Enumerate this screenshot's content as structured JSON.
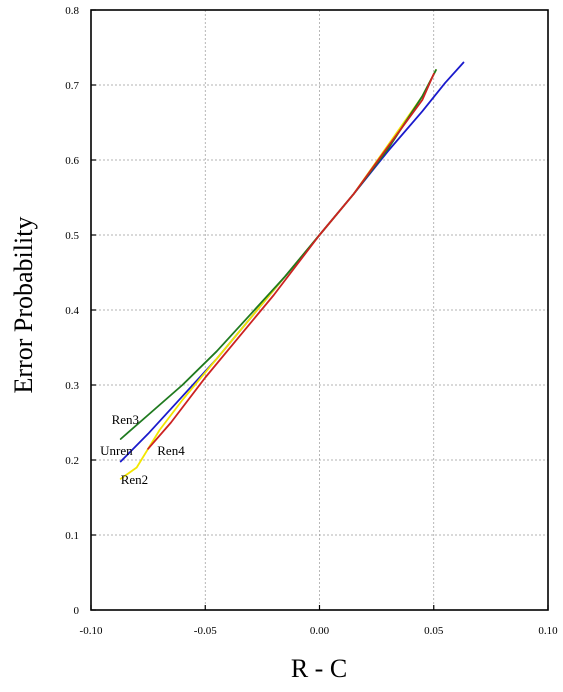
{
  "chart_data": {
    "type": "line",
    "title": "",
    "xlabel": "R - C",
    "ylabel": "Error Probability",
    "xlim": [
      -0.1,
      0.1
    ],
    "ylim": [
      0,
      0.8
    ],
    "xticks": [
      "-0.10",
      "-0.05",
      "0.00",
      "0.05",
      "0.10"
    ],
    "yticks": [
      "0",
      "0.1",
      "0.2",
      "0.3",
      "0.4",
      "0.5",
      "0.6",
      "0.7",
      "0.8"
    ],
    "grid": true,
    "series": [
      {
        "name": "Unren",
        "color": "#1a1acc",
        "x": [
          -0.087,
          -0.075,
          -0.06,
          -0.045,
          -0.03,
          -0.015,
          0.0,
          0.015,
          0.03,
          0.045,
          0.055,
          0.063
        ],
        "y": [
          0.198,
          0.235,
          0.285,
          0.335,
          0.39,
          0.445,
          0.5,
          0.555,
          0.612,
          0.665,
          0.703,
          0.73
        ]
      },
      {
        "name": "Ren2",
        "color": "#f2e600",
        "x": [
          -0.087,
          -0.08,
          -0.07,
          -0.06,
          -0.045,
          -0.03,
          -0.015,
          0.0,
          0.015,
          0.03,
          0.045,
          0.051
        ],
        "y": [
          0.175,
          0.19,
          0.24,
          0.28,
          0.335,
          0.39,
          0.445,
          0.5,
          0.555,
          0.62,
          0.685,
          0.72
        ]
      },
      {
        "name": "Ren3",
        "color": "#1f7a1f",
        "x": [
          -0.087,
          -0.075,
          -0.06,
          -0.045,
          -0.03,
          -0.015,
          0.0,
          0.015,
          0.03,
          0.045,
          0.051
        ],
        "y": [
          0.228,
          0.26,
          0.3,
          0.345,
          0.395,
          0.445,
          0.5,
          0.555,
          0.615,
          0.685,
          0.72
        ]
      },
      {
        "name": "Ren4",
        "color": "#cc2222",
        "x": [
          -0.075,
          -0.065,
          -0.05,
          -0.035,
          -0.02,
          0.0,
          0.015,
          0.03,
          0.045,
          0.05
        ],
        "y": [
          0.215,
          0.25,
          0.31,
          0.365,
          0.42,
          0.5,
          0.555,
          0.618,
          0.68,
          0.715
        ]
      }
    ],
    "annotations": [
      {
        "text": "Ren3",
        "x": -0.091,
        "y": 0.248
      },
      {
        "text": "Unren",
        "x": -0.096,
        "y": 0.207
      },
      {
        "text": "Ren4",
        "x": -0.071,
        "y": 0.207
      },
      {
        "text": "Ren2",
        "x": -0.087,
        "y": 0.168
      }
    ]
  }
}
